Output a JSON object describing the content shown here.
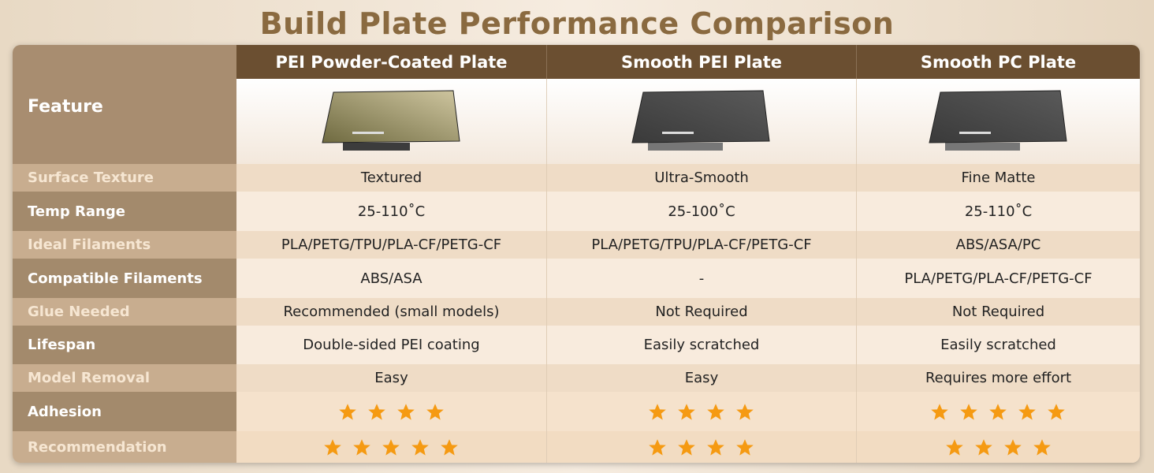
{
  "header": {
    "title": "Build Plate Performance Comparison"
  },
  "table": {
    "feature_header": "Feature",
    "columns": [
      "PEI Powder-Coated Plate",
      "Smooth PEI Plate",
      "Smooth PC Plate"
    ],
    "rows": [
      {
        "label": "Surface Texture",
        "values": [
          "Textured",
          "Ultra-Smooth",
          "Fine Matte"
        ]
      },
      {
        "label": "Temp Range",
        "values": [
          "25-110˚C",
          "25-100˚C",
          "25-110˚C"
        ]
      },
      {
        "label": "Ideal Filaments",
        "values": [
          "PLA/PETG/TPU/PLA-CF/PETG-CF",
          "PLA/PETG/TPU/PLA-CF/PETG-CF",
          "ABS/ASA/PC"
        ]
      },
      {
        "label": "Compatible Filaments",
        "values": [
          "ABS/ASA",
          "-",
          "PLA/PETG/PLA-CF/PETG-CF"
        ]
      },
      {
        "label": "Glue Needed",
        "values": [
          "Recommended (small models)",
          "Not Required",
          "Not Required"
        ]
      },
      {
        "label": "Lifespan",
        "values": [
          "Double-sided PEI coating",
          "Easily scratched",
          "Easily scratched"
        ]
      },
      {
        "label": "Model Removal",
        "values": [
          "Easy",
          "Easy",
          "Requires more effort"
        ]
      },
      {
        "label": "Adhesion",
        "ratings": [
          4,
          4,
          5
        ]
      },
      {
        "label": "Recommendation",
        "ratings": [
          5,
          4,
          4
        ]
      }
    ]
  }
}
